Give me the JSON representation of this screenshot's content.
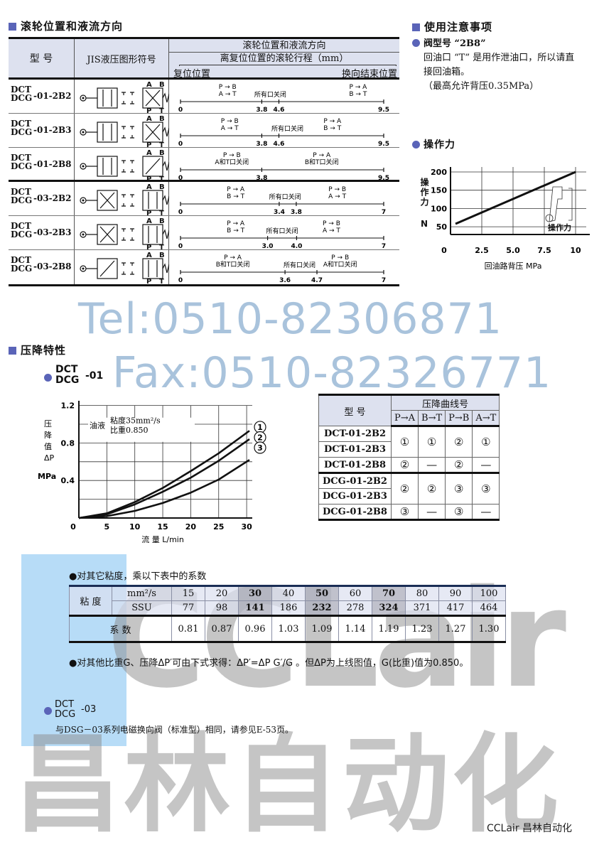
{
  "watermarks": {
    "tel": "Tel:0510-82306871",
    "fax": "Fax:0510-82326771",
    "brand_latin": "CCLair",
    "brand_cn": "昌林自动化",
    "footer": "CCLair 昌林自动化"
  },
  "section_roller": {
    "title": "滚轮位置和液流方向",
    "header": {
      "model": "型 号",
      "symbol": "JIS液压图形符号",
      "title": "滚轮位置和液流方向",
      "subtitle": "离复位位置的滚轮行程（mm）",
      "start": "复位位置",
      "end": "换向结束位置"
    },
    "rows": [
      {
        "top": "DCT",
        "bottom": "DCG",
        "suffix": "-01-2B2",
        "symbol": "cross-right",
        "ports": [
          "A",
          "B",
          "P",
          "T"
        ],
        "max": 9.5,
        "ticks": [
          [
            "0",
            0
          ],
          [
            "3.8",
            3.8
          ],
          [
            "4.6",
            4.6
          ],
          [
            "9.5",
            9.5
          ]
        ],
        "labels": [
          {
            "lines": [
              "P → B",
              "A → T"
            ],
            "at": 2.2
          },
          {
            "lines": [
              "所有口关闭"
            ],
            "at": 4.2
          },
          {
            "lines": [
              "P → A",
              "B → T"
            ],
            "at": 8.3
          }
        ]
      },
      {
        "top": "DCT",
        "bottom": "DCG",
        "suffix": "-01-2B3",
        "symbol": "cross-right",
        "ports": [
          "A",
          "B",
          "P",
          "T"
        ],
        "max": 9.5,
        "ticks": [
          [
            "0",
            0
          ],
          [
            "3.8",
            3.8
          ],
          [
            "4.6",
            4.6
          ],
          [
            "9.5",
            9.5
          ]
        ],
        "labels": [
          {
            "lines": [
              "P → B",
              "A → T"
            ],
            "at": 2.3
          },
          {
            "lines": [
              "所有口关闭"
            ],
            "at": 5.0
          },
          {
            "lines": [
              "P → A",
              "B → T"
            ],
            "at": 7.1
          }
        ]
      },
      {
        "top": "DCT",
        "bottom": "DCG",
        "suffix": "-01-2B8",
        "symbol": "single-right",
        "ports": [
          "A",
          "B",
          "P",
          "T"
        ],
        "max": 9.5,
        "ticks": [
          [
            "0",
            0
          ],
          [
            "3.8",
            3.8
          ],
          [
            "9.5",
            9.5
          ]
        ],
        "labels": [
          {
            "lines": [
              "P → B",
              "A和T口关闭"
            ],
            "at": 2.4
          },
          {
            "lines": [
              "P → A",
              "B和T口关闭"
            ],
            "at": 6.6
          }
        ]
      },
      {
        "top": "DCT",
        "bottom": "DCG",
        "suffix": "-03-2B2",
        "symbol": "cross-left",
        "ports": [
          "A",
          "B",
          "P",
          "T"
        ],
        "max": 7,
        "ticks": [
          [
            "0",
            0
          ],
          [
            "3.4",
            3.4
          ],
          [
            "3.8",
            3.8
          ],
          [
            "7",
            7
          ]
        ],
        "labels": [
          {
            "lines": [
              "P → A",
              "B → T"
            ],
            "at": 1.9
          },
          {
            "lines": [
              "所有口关闭"
            ],
            "at": 3.6
          },
          {
            "lines": [
              "P → B",
              "A → T"
            ],
            "at": 5.4
          }
        ]
      },
      {
        "top": "DCT",
        "bottom": "DCG",
        "suffix": "-03-2B3",
        "symbol": "cross-left",
        "ports": [
          "A",
          "B",
          "P",
          "T"
        ],
        "max": 7,
        "ticks": [
          [
            "0",
            0
          ],
          [
            "3.0",
            3.0
          ],
          [
            "4.0",
            4.0
          ],
          [
            "7",
            7
          ]
        ],
        "labels": [
          {
            "lines": [
              "P → A",
              "B → T"
            ],
            "at": 1.9
          },
          {
            "lines": [
              "所有口关闭"
            ],
            "at": 3.5
          },
          {
            "lines": [
              "P → B",
              "A → T"
            ],
            "at": 5.2
          }
        ]
      },
      {
        "top": "DCT",
        "bottom": "DCG",
        "suffix": "-03-2B8",
        "symbol": "single-left",
        "ports": [
          "A",
          "B",
          "P",
          "T"
        ],
        "max": 7,
        "ticks": [
          [
            "0",
            0
          ],
          [
            "3.6",
            3.6
          ],
          [
            "4.7",
            4.7
          ],
          [
            "7",
            7
          ]
        ],
        "labels": [
          {
            "lines": [
              "P → A",
              "B和T口关闭"
            ],
            "at": 1.8
          },
          {
            "lines": [
              "所有口关闭"
            ],
            "at": 4.1
          },
          {
            "lines": [
              "P → B",
              "A和T口关闭"
            ],
            "at": 5.5
          }
        ]
      }
    ]
  },
  "notes": {
    "title": "使用注意事项",
    "item_title": "阀型号 “2B8”",
    "lines": [
      "回油口 “T” 是用作泄油口，所以请直",
      "接回油箱。",
      "（最高允许背压0.35MPa）"
    ],
    "force_title": "操作力"
  },
  "section_pressure": {
    "title": "压降特性",
    "dct01": {
      "top": "DCT",
      "bottom": "DCG",
      "suffix": "-01"
    },
    "oil_label": "油液",
    "oil_visc": "粘度35mm²/s",
    "oil_sg": "比重0.850",
    "ylabel_chars": [
      "压",
      "降",
      "值",
      "ΔP"
    ],
    "yunit": "MPa",
    "table": {
      "model": "型 号",
      "group": "压降曲线号",
      "cols": [
        "P→A",
        "B→T",
        "P→B",
        "A→T"
      ],
      "groups": [
        {
          "models": [
            "DCT-01-2B2",
            "DCT-01-2B3"
          ],
          "values": [
            "①",
            "①",
            "②",
            "①"
          ]
        },
        {
          "models": [
            "DCT-01-2B8"
          ],
          "values": [
            "②",
            "—",
            "②",
            "—"
          ]
        },
        {
          "models": [
            "DCG-01-2B2",
            "DCG-01-2B3"
          ],
          "values": [
            "②",
            "②",
            "③",
            "③"
          ]
        },
        {
          "models": [
            "DCG-01-2B8"
          ],
          "values": [
            "③",
            "—",
            "③",
            "—"
          ]
        }
      ]
    },
    "visc_note": "●对其它粘度，乘以下表中的系数",
    "visc_table": {
      "label": "粘 度",
      "unit1": "mm²/s",
      "unit2": "SSU",
      "mm2s": [
        "15",
        "20",
        "30",
        "40",
        "50",
        "60",
        "70",
        "80",
        "90",
        "100"
      ],
      "ssu": [
        "77",
        "98",
        "141",
        "186",
        "232",
        "278",
        "324",
        "371",
        "417",
        "464"
      ],
      "coef_label": "系 数",
      "coef": [
        "0.81",
        "0.87",
        "0.96",
        "1.03",
        "1.09",
        "1.14",
        "1.19",
        "1.23",
        "1.27",
        "1.30"
      ]
    },
    "formula_note": "●对其他比重G、压降ΔP′可由下式求得：ΔP′=ΔP G′/G 。但ΔP为上线图值，G(比重)值为0.850。",
    "dct03": {
      "top": "DCT",
      "bottom": "DCG",
      "suffix": "-03"
    },
    "dct03_text": "与DSG－03系列电磁换向阀（标准型）相同，请参见E-53页。"
  },
  "colors": {
    "accent": "#5a64b8",
    "header_bg": "#dde1ef",
    "watermark_blue": "#a9c3dc"
  },
  "chart_data": [
    {
      "type": "line",
      "title": "操作力",
      "xlabel": "回油路背压  MPa",
      "ylabel": "操作力 N",
      "xlim": [
        0,
        10
      ],
      "ylim": [
        25,
        210
      ],
      "xticks": [
        "0",
        "2.5",
        "5.0",
        "7.5",
        "10"
      ],
      "yticks": [
        "50",
        "100",
        "150",
        "200"
      ],
      "grid": true,
      "inset_label": "操作力",
      "series": [
        {
          "x": [
            0.4,
            10
          ],
          "y": [
            58,
            200
          ]
        }
      ]
    },
    {
      "type": "line",
      "xlabel": "流 量  L/min",
      "ylabel": "压降值ΔP MPa",
      "xlim": [
        0,
        31
      ],
      "ylim": [
        0,
        1.2
      ],
      "xticks": [
        "0",
        "5",
        "10",
        "15",
        "20",
        "25",
        "30"
      ],
      "yticks": [
        "0.4",
        "0.8",
        "1.2"
      ],
      "grid": true,
      "series": [
        {
          "name": "1",
          "x": [
            0,
            5,
            10,
            15,
            20,
            25,
            30.5
          ],
          "y": [
            0,
            0.05,
            0.17,
            0.32,
            0.5,
            0.69,
            0.93
          ]
        },
        {
          "name": "2",
          "x": [
            0,
            5,
            10,
            15,
            20,
            25,
            30.5
          ],
          "y": [
            0,
            0.04,
            0.145,
            0.28,
            0.43,
            0.61,
            0.84
          ]
        },
        {
          "name": "3",
          "x": [
            0,
            5,
            10,
            15,
            20,
            25,
            30.5
          ],
          "y": [
            0,
            0.02,
            0.076,
            0.16,
            0.27,
            0.41,
            0.62
          ]
        }
      ]
    }
  ]
}
